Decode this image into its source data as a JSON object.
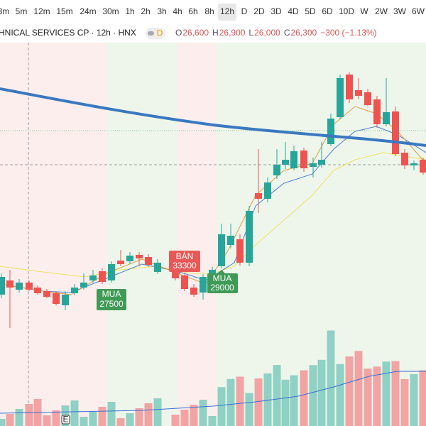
{
  "timeframes": [
    "3m",
    "5m",
    "12m",
    "15m",
    "24m",
    "30m",
    "1h",
    "2h",
    "3h",
    "4h",
    "6h",
    "8h",
    "12h",
    "D",
    "2D",
    "3D",
    "4D",
    "5D",
    "6D",
    "10D",
    "W",
    "2W",
    "3W",
    "6W"
  ],
  "active_timeframe": "12h",
  "symbol": "HNICAL SERVICES CP · 12h · HNX",
  "indicator": "D",
  "ohlc": [
    {
      "label": "O",
      "value": "26,600"
    },
    {
      "label": "H",
      "value": "26,900"
    },
    {
      "label": "L",
      "value": "26,000"
    },
    {
      "label": "C",
      "value": "26,300"
    }
  ],
  "change": "−300 (−1.13%)",
  "signals": [
    {
      "label": "MUA",
      "price": 27500
    },
    {
      "label": "BÁN",
      "price": 33300
    },
    {
      "label": "MUA",
      "price": 29000
    }
  ],
  "badge": "E"
}
